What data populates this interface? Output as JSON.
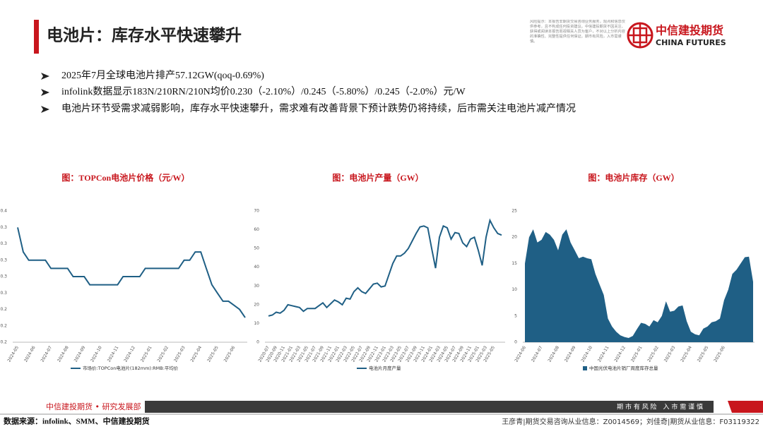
{
  "header": {
    "title": "电池片：库存水平快速攀升",
    "logo_cn": "中信建投期货",
    "logo_en": "CHINA FUTURES",
    "disclaimer": "风险提示：本报告非期货交易咨询业务服务，观点和信息仅供参考，且不构成任何投资建议。中信建投期货不因关注、获得或阅读本报告而视相关人员为客户，不对以上分析内容的准确性、完整性提供任何保证。期市有风险，入市需谨慎。"
  },
  "bullets": [
    "2025年7月全球电池片排产57.12GW(qoq-0.69%)",
    "infolink数据显示183N/210RN/210N均价0.230（-2.10%）/0.245（-5.80%）/0.245（-2.0%）元/W",
    "电池片环节受需求减弱影响，库存水平快速攀升，需求难有改善背景下预计跌势仍将持续，后市需关注电池片减产情况"
  ],
  "chart_data": [
    {
      "type": "line",
      "title": "图：TOPCon电池片价格（元/W）",
      "categories": [
        "2024-05",
        null,
        null,
        "2024-06",
        null,
        null,
        "2024-07",
        null,
        null,
        "2024-08",
        null,
        null,
        "2024-09",
        null,
        null,
        "2024-10",
        null,
        null,
        "2024-11",
        null,
        null,
        "2024-12",
        null,
        null,
        "2025-01",
        null,
        null,
        "2025-02",
        null,
        null,
        "2025-03",
        null,
        null,
        "2025-04",
        null,
        null,
        "2025-05",
        null,
        null,
        "2025-06",
        null,
        null
      ],
      "series": [
        {
          "name": "市场价:TOPCon电池片(182mm):RMB:平均价",
          "color": "#1f5f85",
          "values": [
            0.34,
            0.31,
            0.3,
            0.3,
            0.3,
            0.3,
            0.29,
            0.29,
            0.29,
            0.29,
            0.28,
            0.28,
            0.28,
            0.27,
            0.27,
            0.27,
            0.27,
            0.27,
            0.27,
            0.28,
            0.28,
            0.28,
            0.28,
            0.29,
            0.29,
            0.29,
            0.29,
            0.29,
            0.29,
            0.29,
            0.3,
            0.3,
            0.31,
            0.31,
            0.29,
            0.27,
            0.26,
            0.25,
            0.25,
            0.245,
            0.24,
            0.23
          ]
        }
      ],
      "ylim": [
        0.2,
        0.36
      ],
      "yticks": [
        0.2,
        {
          "value": 0.22,
          "label": "0.2"
        },
        {
          "value": 0.24,
          "label": "0.2"
        },
        {
          "value": 0.26,
          "label": "0.3"
        },
        {
          "value": 0.28,
          "label": "0.3"
        },
        0.3,
        {
          "value": 0.32,
          "label": "0.3"
        },
        {
          "value": 0.34,
          "label": "0.3"
        },
        {
          "value": 0.36,
          "label": "0.4"
        }
      ]
    },
    {
      "type": "line",
      "title": "图：电池片产量（GW）",
      "categories": [
        "2020-07",
        null,
        "2020-09",
        null,
        "2020-11",
        null,
        "2021-01",
        null,
        "2021-03",
        null,
        "2021-05",
        null,
        "2021-07",
        null,
        "2021-09",
        null,
        "2021-11",
        null,
        "2022-01",
        null,
        "2022-03",
        null,
        "2022-05",
        null,
        "2022-07",
        null,
        "2022-09",
        null,
        "2022-11",
        null,
        "2023-01",
        null,
        "2023-03",
        null,
        "2023-05",
        null,
        "2023-07",
        null,
        "2023-09",
        null,
        "2023-11",
        null,
        "2024-01",
        null,
        "2024-03",
        null,
        "2024-05",
        null,
        "2024-07",
        null,
        "2024-09",
        null,
        "2024-11",
        null,
        "2025-01",
        null,
        "2025-03",
        null,
        "2025-05",
        null,
        null
      ],
      "series": [
        {
          "name": "电池片月度产量",
          "color": "#1f5f85",
          "values": [
            14,
            14.5,
            16,
            15.5,
            17,
            20,
            19.5,
            19,
            18.5,
            16.5,
            18,
            18,
            18,
            19.5,
            21,
            18.5,
            20.5,
            22.5,
            21.5,
            20,
            23.5,
            23,
            27,
            29,
            27,
            26,
            28.5,
            31,
            31.5,
            29.5,
            30,
            36,
            42,
            46,
            46,
            47.5,
            50,
            54,
            58,
            61.5,
            62,
            61,
            50,
            39.5,
            56,
            62,
            61,
            55,
            58.5,
            58,
            53,
            51,
            55,
            56,
            49,
            41,
            56,
            65,
            61,
            58,
            57.12
          ]
        }
      ],
      "ylim": [
        0,
        70
      ],
      "yticks": [
        0,
        10,
        20,
        30,
        40,
        50,
        60,
        70
      ]
    },
    {
      "type": "area",
      "title": "图：电池片库存（GW）",
      "categories": [
        "2024-06",
        null,
        null,
        null,
        "2024-07",
        null,
        null,
        null,
        "2024-08",
        null,
        null,
        null,
        "2024-09",
        null,
        null,
        null,
        "2024-10",
        null,
        null,
        null,
        "2024-11",
        null,
        null,
        null,
        "2024-12",
        null,
        null,
        null,
        "2025-01",
        null,
        null,
        null,
        "2025-02",
        null,
        null,
        null,
        "2025-03",
        null,
        null,
        null,
        "2025-04",
        null,
        null,
        null,
        "2025-05",
        null,
        null,
        null,
        "2025-06",
        null,
        null,
        null,
        null,
        null,
        null,
        null
      ],
      "series": [
        {
          "name": "中国光伏电池片销厂周度库存总量",
          "color": "#1f5f85",
          "values": [
            15,
            20,
            21.5,
            19,
            19.5,
            21,
            20.5,
            19.5,
            17.5,
            20.5,
            21.5,
            19,
            17.5,
            16,
            16.3,
            16,
            15.8,
            13,
            11,
            9,
            4.5,
            3,
            2,
            1.3,
            1,
            0.8,
            1.2,
            2.5,
            3.7,
            3.5,
            3,
            4.2,
            3.8,
            5,
            7.8,
            5.8,
            6,
            6.8,
            7,
            4,
            2,
            1.5,
            1.3,
            2.6,
            3,
            3.8,
            4,
            4.5,
            8,
            10,
            13,
            13.8,
            15,
            16.2,
            16.3,
            11.5
          ]
        }
      ],
      "ylim": [
        0,
        25
      ],
      "yticks": [
        0,
        5,
        10,
        15,
        20,
        25
      ]
    }
  ],
  "footer": {
    "department": "中信建投期货 • 研究发展部",
    "slogan": "期 市 有 风 险　入 市 需 谨 慎",
    "source": "数据来源：infolink、SMM、中信建投期货",
    "analysts": "王彦青|期货交易咨询从业信息：Z0014569；刘佳奇|期货从业信息：F03119322"
  }
}
